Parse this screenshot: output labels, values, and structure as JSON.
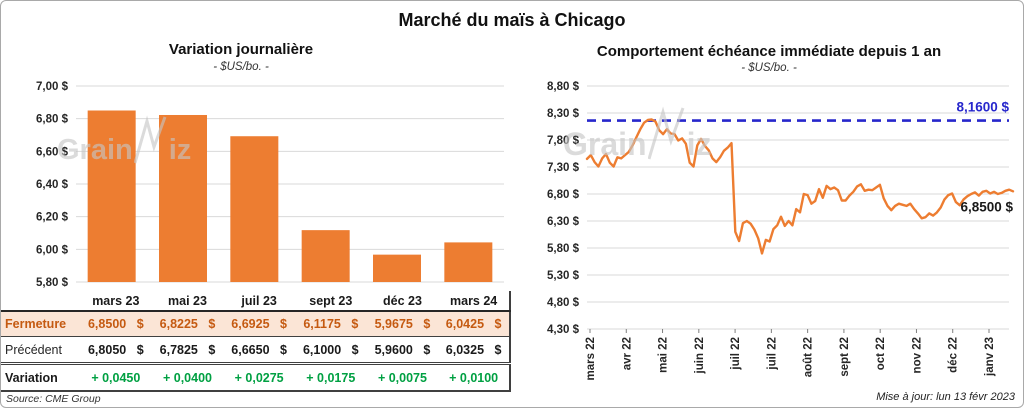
{
  "header": {
    "title": "Marché du maïs à Chicago"
  },
  "watermark": {
    "full": "GrainWiz",
    "part1": "Grain",
    "part2": "iz"
  },
  "chart_data": [
    {
      "type": "bar",
      "title": "Variation journalière",
      "subtitle": "- $US/bo. -",
      "categories": [
        "mars 23",
        "mai 23",
        "juil 23",
        "sept 23",
        "déc 23",
        "mars 24"
      ],
      "values": [
        6.85,
        6.8225,
        6.6925,
        6.1175,
        5.9675,
        6.0425
      ],
      "ylabel": "",
      "ylim": [
        5.8,
        7.0
      ],
      "ytick_step": 0.2,
      "ytick_labels": [
        "7,00 $",
        "6,80 $",
        "6,60 $",
        "6,40 $",
        "6,20 $",
        "6,00 $",
        "5,80 $"
      ],
      "bar_color": "#ED7D31",
      "grid_color": "#D9D9D9",
      "grid": true,
      "legend": false
    },
    {
      "type": "line",
      "title": "Comportement échéance immédiate depuis 1 an",
      "subtitle": "- $US/bo. -",
      "x_tick_labels": [
        "mars 22",
        "avr 22",
        "mai 22",
        "juin 22",
        "juil 22",
        "juil 22",
        "août 22",
        "sept 22",
        "oct 22",
        "nov 22",
        "déc 22",
        "janv 23"
      ],
      "ylim": [
        4.3,
        8.8
      ],
      "ytick_step": 0.5,
      "ytick_labels": [
        "8,80 $",
        "8,30 $",
        "7,80 $",
        "7,30 $",
        "6,80 $",
        "6,30 $",
        "5,80 $",
        "5,30 $",
        "4,80 $",
        "4,30 $"
      ],
      "line_color": "#ED7D31",
      "grid_color": "#D9D9D9",
      "grid": true,
      "legend": false,
      "reference_line": {
        "value": 8.16,
        "label": "8,1600 $",
        "color": "#2727CC",
        "style": "dashed"
      },
      "last_point_label": {
        "text": "6,8500 $",
        "value": 6.85,
        "color": "#1a1a1a"
      },
      "series": [
        {
          "values": [
            7.45,
            7.52,
            7.39,
            7.31,
            7.46,
            7.54,
            7.38,
            7.31,
            7.48,
            7.46,
            7.52,
            7.58,
            7.7,
            7.85,
            8.0,
            8.12,
            8.17,
            8.18,
            8.14,
            7.98,
            7.91,
            8.0,
            7.92,
            7.91,
            7.79,
            7.83,
            7.73,
            7.38,
            7.31,
            7.7,
            7.82,
            7.69,
            7.61,
            7.46,
            7.39,
            7.48,
            7.6,
            7.66,
            7.74,
            6.1,
            5.93,
            6.26,
            6.3,
            6.25,
            6.14,
            5.98,
            5.7,
            5.95,
            5.92,
            6.15,
            6.22,
            6.38,
            6.21,
            6.3,
            6.22,
            6.52,
            6.46,
            6.8,
            6.78,
            6.62,
            6.67,
            6.89,
            6.73,
            6.95,
            6.89,
            6.92,
            6.87,
            6.68,
            6.68,
            6.77,
            6.84,
            6.94,
            6.98,
            6.86,
            6.88,
            6.87,
            6.92,
            6.97,
            6.72,
            6.58,
            6.5,
            6.58,
            6.62,
            6.6,
            6.58,
            6.62,
            6.52,
            6.44,
            6.35,
            6.37,
            6.44,
            6.4,
            6.46,
            6.55,
            6.7,
            6.78,
            6.81,
            6.65,
            6.59,
            6.7,
            6.76,
            6.8,
            6.83,
            6.77,
            6.84,
            6.86,
            6.81,
            6.84,
            6.8,
            6.82,
            6.86,
            6.88,
            6.85
          ]
        }
      ]
    }
  ],
  "table": {
    "col_header": [
      "mars 23",
      "mai 23",
      "juil 23",
      "sept 23",
      "déc 23",
      "mars 24"
    ],
    "rows": [
      {
        "label": "Fermeture",
        "cells": [
          "6,8500 $",
          "6,8225 $",
          "6,6925 $",
          "6,1175 $",
          "5,9675 $",
          "6,0425 $"
        ]
      },
      {
        "label": "Précédent",
        "cells": [
          "6,8050 $",
          "6,7825 $",
          "6,6650 $",
          "6,1000 $",
          "5,9600 $",
          "6,0325 $"
        ]
      },
      {
        "label": "Variation",
        "cells": [
          "+ 0,0450",
          "+ 0,0400",
          "+ 0,0275",
          "+ 0,0175",
          "+ 0,0075",
          "+ 0,0100"
        ]
      }
    ],
    "source": "Source: CME Group"
  },
  "footer": {
    "updated": "Mise à jour: lun 13 févr 2023"
  }
}
